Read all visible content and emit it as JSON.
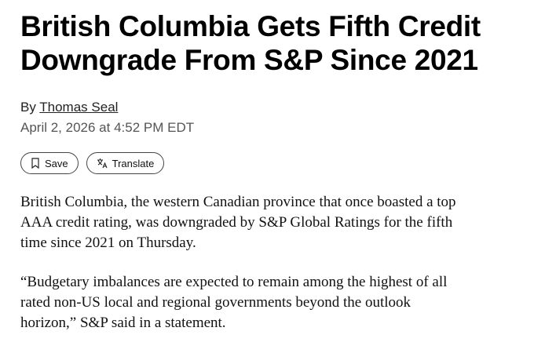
{
  "article": {
    "title": "British Columbia Gets Fifth Credit Downgrade From S&P Since 2021",
    "byline_prefix": "By",
    "author": "Thomas Seal",
    "date": "April 2, 2026 at 4:52 PM EDT",
    "buttons": [
      "Save",
      "Translate"
    ],
    "paragraphs": [
      "British Columbia, the western Canadian province that once boasted a top AAA credit rating, was downgraded by S&P Global Ratings for the fifth time since 2021 on Thursday.",
      "“Budgetary imbalances are expected to remain among the highest of all rated non-US local and regional governments beyond the outlook horizon,” S&P said in a statement."
    ]
  }
}
